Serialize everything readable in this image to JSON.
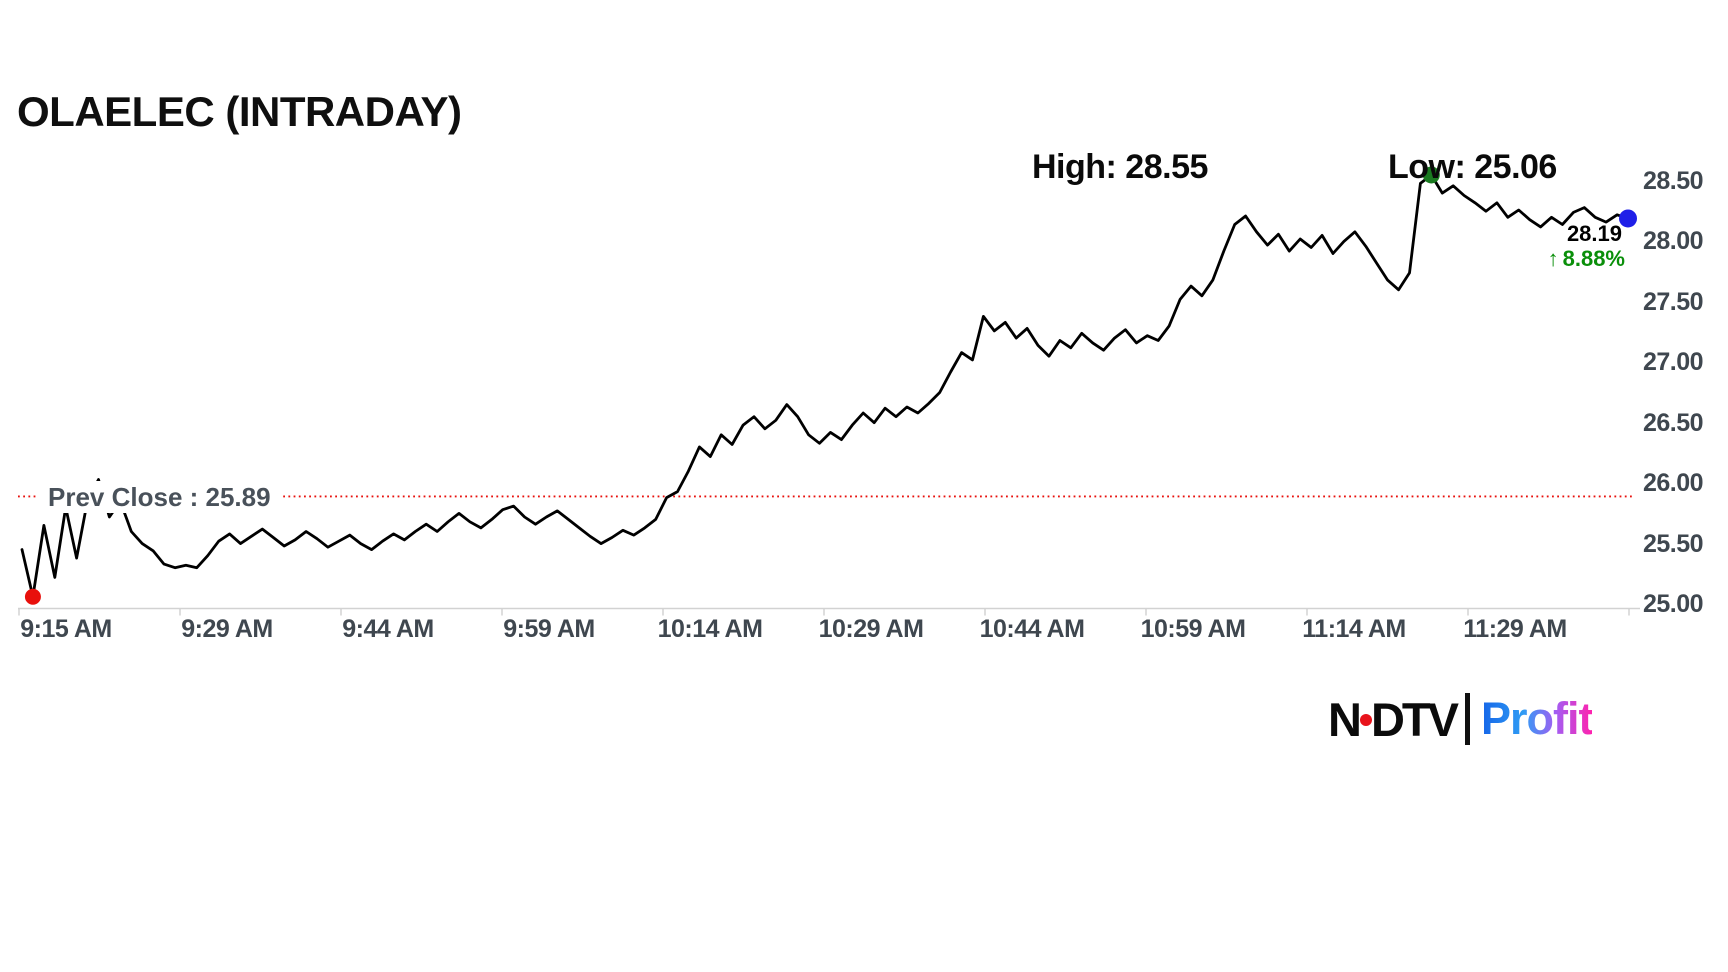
{
  "title": "OLAELEC (INTRADAY)",
  "annotations": {
    "high_label": "High: 28.55",
    "low_label": "Low: 25.06",
    "last_price": "28.19",
    "change_arrow": "↑",
    "change_percent": "8.88%",
    "prev_close_label": "Prev Close : 25.89"
  },
  "branding": {
    "ndtv": "NDTV",
    "profit": "Profit"
  },
  "colors": {
    "line": "#000000",
    "prev_close_line": "#e8100c",
    "open_dot": "#e8100c",
    "high_dot": "#1a7a20",
    "last_dot": "#1f1fe8",
    "change_text": "#0a8f0a",
    "axis_text": "#3f474f",
    "axis_line": "#d2d2d2"
  },
  "chart_data": {
    "type": "line",
    "title": "OLAELEC (INTRADAY)",
    "xlabel": "",
    "ylabel": "",
    "ylim": [
      25.0,
      28.5
    ],
    "high": 28.55,
    "low": 25.06,
    "last": 28.19,
    "prev_close": 25.89,
    "change_pct": 8.88,
    "x_tick_labels": [
      "9:15 AM",
      "9:29 AM",
      "9:44 AM",
      "9:59 AM",
      "10:14 AM",
      "10:29 AM",
      "10:44 AM",
      "10:59 AM",
      "11:14 AM",
      "11:29 AM"
    ],
    "y_tick_labels": [
      "28.50",
      "28.00",
      "27.50",
      "27.00",
      "26.50",
      "26.00",
      "25.50",
      "25.00"
    ],
    "start_time": "9:15 AM",
    "interval_minutes": 1,
    "prices": [
      25.45,
      25.06,
      25.65,
      25.22,
      25.8,
      25.38,
      25.86,
      26.03,
      25.72,
      25.85,
      25.6,
      25.5,
      25.44,
      25.33,
      25.3,
      25.32,
      25.3,
      25.4,
      25.52,
      25.58,
      25.5,
      25.56,
      25.62,
      25.55,
      25.48,
      25.53,
      25.6,
      25.54,
      25.47,
      25.52,
      25.57,
      25.5,
      25.45,
      25.52,
      25.58,
      25.53,
      25.6,
      25.66,
      25.6,
      25.68,
      25.75,
      25.68,
      25.63,
      25.7,
      25.78,
      25.81,
      25.72,
      25.66,
      25.72,
      25.77,
      25.7,
      25.63,
      25.56,
      25.5,
      25.55,
      25.61,
      25.57,
      25.63,
      25.7,
      25.88,
      25.93,
      26.1,
      26.3,
      26.22,
      26.4,
      26.32,
      26.48,
      26.55,
      26.45,
      26.52,
      26.65,
      26.55,
      26.4,
      26.33,
      26.42,
      26.36,
      26.48,
      26.58,
      26.5,
      26.62,
      26.55,
      26.63,
      26.58,
      26.66,
      26.75,
      26.92,
      27.08,
      27.02,
      27.38,
      27.26,
      27.33,
      27.2,
      27.28,
      27.14,
      27.05,
      27.18,
      27.12,
      27.24,
      27.16,
      27.1,
      27.2,
      27.27,
      27.16,
      27.22,
      27.18,
      27.3,
      27.52,
      27.63,
      27.55,
      27.68,
      27.92,
      28.14,
      28.21,
      28.08,
      27.97,
      28.06,
      27.92,
      28.02,
      27.95,
      28.05,
      27.9,
      28.0,
      28.08,
      27.96,
      27.82,
      27.68,
      27.6,
      27.74,
      28.48,
      28.55,
      28.4,
      28.46,
      28.38,
      28.32,
      28.25,
      28.32,
      28.2,
      28.26,
      28.18,
      28.12,
      28.2,
      28.14,
      28.24,
      28.28,
      28.2,
      28.16,
      28.22,
      28.19
    ]
  }
}
